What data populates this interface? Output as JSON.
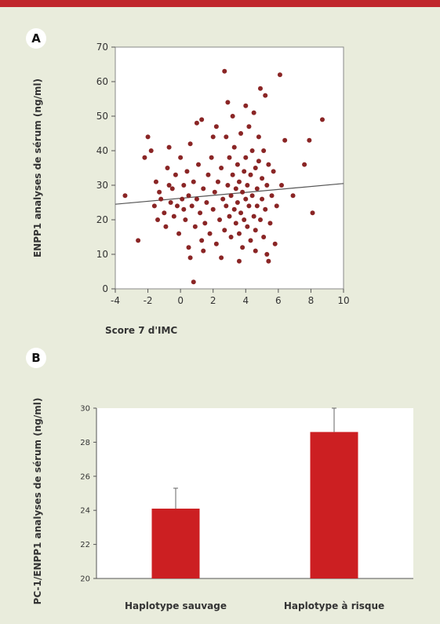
{
  "colors": {
    "top_bar": "#c0272d",
    "background": "#e9ecdc",
    "point": "#8a2525",
    "bar": "#cc1f22",
    "regression_line": "#555555"
  },
  "panels": {
    "a": {
      "badge": "A"
    },
    "b": {
      "badge": "B"
    }
  },
  "chart_data": [
    {
      "type": "scatter",
      "panel": "A",
      "xlabel": "Score 7 d'IMC",
      "ylabel": "ENPP1 analyses de sérum (ng/ml)",
      "xlim": [
        -4,
        10
      ],
      "ylim": [
        0,
        70
      ],
      "x_ticks": [
        "-4",
        "-2",
        "0",
        "2",
        "4",
        "6",
        "8",
        "10"
      ],
      "y_ticks": [
        "0",
        "10",
        "20",
        "30",
        "40",
        "50",
        "60",
        "70"
      ],
      "regression_line": {
        "x": [
          -4,
          10
        ],
        "y": [
          24.5,
          30.5
        ]
      },
      "grid": false,
      "points": [
        [
          -3.4,
          27
        ],
        [
          -2.6,
          14
        ],
        [
          -2.2,
          38
        ],
        [
          -2.0,
          44
        ],
        [
          -1.8,
          40
        ],
        [
          -1.6,
          24
        ],
        [
          -1.5,
          31
        ],
        [
          -1.4,
          20
        ],
        [
          -1.3,
          28
        ],
        [
          -1.2,
          26
        ],
        [
          -1.0,
          22
        ],
        [
          -0.9,
          18
        ],
        [
          -0.8,
          35
        ],
        [
          -0.7,
          41
        ],
        [
          -0.6,
          25
        ],
        [
          -0.5,
          29
        ],
        [
          -0.4,
          21
        ],
        [
          -0.3,
          33
        ],
        [
          -0.2,
          24
        ],
        [
          -0.1,
          16
        ],
        [
          0.0,
          38
        ],
        [
          0.1,
          26
        ],
        [
          0.2,
          30
        ],
        [
          0.3,
          20
        ],
        [
          0.4,
          34
        ],
        [
          0.5,
          27
        ],
        [
          0.5,
          12
        ],
        [
          0.6,
          9
        ],
        [
          0.6,
          42
        ],
        [
          0.7,
          24
        ],
        [
          0.8,
          2
        ],
        [
          0.8,
          31
        ],
        [
          0.9,
          18
        ],
        [
          1.0,
          48
        ],
        [
          1.0,
          26
        ],
        [
          1.1,
          36
        ],
        [
          1.2,
          22
        ],
        [
          1.3,
          49
        ],
        [
          1.3,
          14
        ],
        [
          1.4,
          29
        ],
        [
          1.5,
          19
        ],
        [
          1.6,
          25
        ],
        [
          1.7,
          33
        ],
        [
          1.8,
          16
        ],
        [
          1.9,
          38
        ],
        [
          2.0,
          23
        ],
        [
          2.0,
          44
        ],
        [
          2.1,
          28
        ],
        [
          2.2,
          47
        ],
        [
          2.2,
          13
        ],
        [
          2.3,
          31
        ],
        [
          2.4,
          20
        ],
        [
          2.5,
          35
        ],
        [
          2.6,
          26
        ],
        [
          2.7,
          63
        ],
        [
          2.7,
          17
        ],
        [
          2.8,
          24
        ],
        [
          2.8,
          44
        ],
        [
          2.9,
          30
        ],
        [
          2.9,
          54
        ],
        [
          3.0,
          21
        ],
        [
          3.0,
          38
        ],
        [
          3.1,
          27
        ],
        [
          3.1,
          15
        ],
        [
          3.2,
          50
        ],
        [
          3.2,
          33
        ],
        [
          3.3,
          23
        ],
        [
          3.3,
          41
        ],
        [
          3.4,
          19
        ],
        [
          3.4,
          29
        ],
        [
          3.5,
          36
        ],
        [
          3.5,
          25
        ],
        [
          3.6,
          16
        ],
        [
          3.6,
          31
        ],
        [
          3.7,
          22
        ],
        [
          3.7,
          45
        ],
        [
          3.8,
          28
        ],
        [
          3.8,
          12
        ],
        [
          3.9,
          34
        ],
        [
          3.9,
          20
        ],
        [
          4.0,
          53
        ],
        [
          4.0,
          26
        ],
        [
          4.0,
          38
        ],
        [
          4.1,
          18
        ],
        [
          4.1,
          30
        ],
        [
          4.2,
          24
        ],
        [
          4.2,
          47
        ],
        [
          4.3,
          33
        ],
        [
          4.3,
          14
        ],
        [
          4.4,
          27
        ],
        [
          4.4,
          40
        ],
        [
          4.5,
          21
        ],
        [
          4.5,
          51
        ],
        [
          4.6,
          35
        ],
        [
          4.6,
          17
        ],
        [
          4.7,
          29
        ],
        [
          4.7,
          24
        ],
        [
          4.8,
          44
        ],
        [
          4.8,
          37
        ],
        [
          4.9,
          58
        ],
        [
          4.9,
          20
        ],
        [
          5.0,
          32
        ],
        [
          5.0,
          26
        ],
        [
          5.1,
          15
        ],
        [
          5.1,
          40
        ],
        [
          5.2,
          23
        ],
        [
          5.2,
          56
        ],
        [
          5.3,
          30
        ],
        [
          5.3,
          10
        ],
        [
          5.4,
          36
        ],
        [
          5.5,
          19
        ],
        [
          5.6,
          27
        ],
        [
          5.7,
          34
        ],
        [
          5.8,
          13
        ],
        [
          5.9,
          24
        ],
        [
          6.1,
          62
        ],
        [
          6.2,
          30
        ],
        [
          6.4,
          43
        ],
        [
          6.9,
          27
        ],
        [
          7.6,
          36
        ],
        [
          7.9,
          43
        ],
        [
          8.1,
          22
        ],
        [
          8.7,
          49
        ],
        [
          -0.7,
          30
        ],
        [
          0.2,
          23
        ],
        [
          1.4,
          11
        ],
        [
          2.5,
          9
        ],
        [
          3.6,
          8
        ],
        [
          4.6,
          11
        ],
        [
          5.4,
          8
        ]
      ]
    },
    {
      "type": "bar",
      "panel": "B",
      "categories": [
        "Haplotype sauvage",
        "Haplotype à risque"
      ],
      "values": [
        24.1,
        28.6
      ],
      "errors": [
        1.2,
        1.4
      ],
      "ylabel": "PC-1/ENPP1 analyses de sérum (ng/ml)",
      "ylim": [
        20,
        30
      ],
      "y_ticks": [
        "20",
        "22",
        "24",
        "26",
        "28",
        "30"
      ],
      "grid": false
    }
  ]
}
